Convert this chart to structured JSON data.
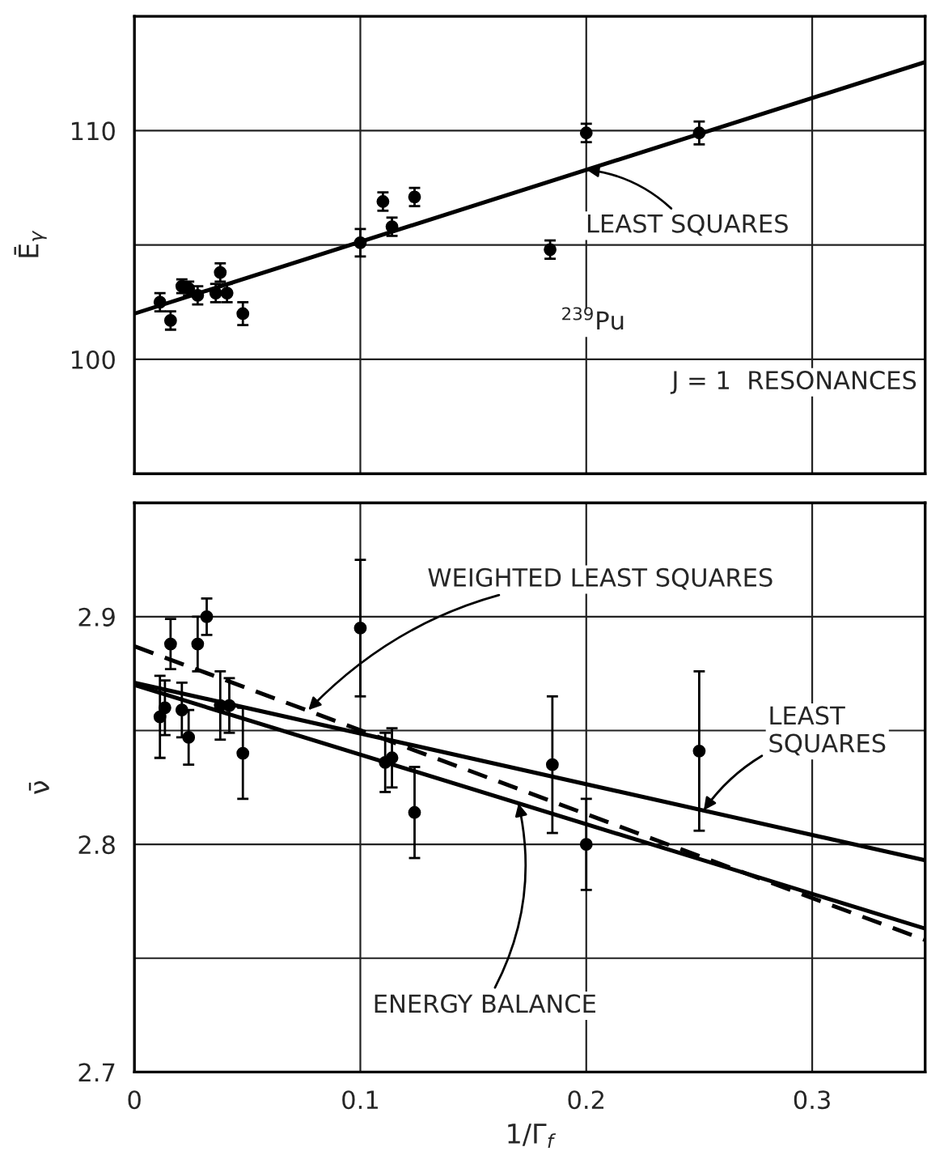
{
  "chart_data": [
    {
      "type": "scatter",
      "ylabel": "Ē$_{γ}$",
      "xlim": [
        0,
        0.35
      ],
      "xticks": [
        0,
        0.1,
        0.2,
        0.3
      ],
      "ylim": [
        95,
        115
      ],
      "yticks": [
        {
          "value": 95,
          "label": null
        },
        100,
        {
          "value": 105,
          "label": null
        },
        110,
        {
          "value": 115,
          "label": null
        }
      ],
      "tick_labels": "y",
      "grid": true,
      "legend": false,
      "marker": "circle",
      "series": [
        {
          "color": "#000000",
          "x": [
            0.0113,
            0.016,
            0.021,
            0.024,
            0.028,
            0.036,
            0.038,
            0.041,
            0.048,
            0.1,
            0.11,
            0.114,
            0.124,
            0.184,
            0.2,
            0.25
          ],
          "values": [
            102.5,
            101.7,
            103.2,
            103.1,
            102.8,
            102.9,
            103.8,
            102.9,
            102.0,
            105.1,
            106.9,
            105.8,
            107.1,
            104.8,
            109.9,
            109.9
          ],
          "errors": [
            0.4,
            0.4,
            0.3,
            0.3,
            0.4,
            0.4,
            0.4,
            0.4,
            0.5,
            0.6,
            0.4,
            0.4,
            0.4,
            0.4,
            0.4,
            0.5
          ]
        },
        {
          "type": "line",
          "marker": "none",
          "color": "#000000",
          "line_style": "solid",
          "x": [
            0,
            0.35
          ],
          "values": [
            102.0,
            113.0
          ]
        }
      ],
      "annotations": [
        {
          "text": "LEAST SQUARES",
          "x": 0.2,
          "y": 108.3
        },
        "$^{239}$Pu",
        "J = 1  RESONANCES"
      ]
    },
    {
      "type": "scatter",
      "ylabel": "ν̄",
      "xlabel": "1/Γ$_{f}$",
      "xlim": [
        0,
        0.35
      ],
      "xticks": [
        0,
        0.1,
        0.2,
        0.3
      ],
      "ylim": [
        2.7,
        2.95
      ],
      "yticks": [
        2.7,
        {
          "value": 2.75,
          "label": null
        },
        2.8,
        {
          "value": 2.85,
          "label": null
        },
        2.9,
        {
          "value": 2.95,
          "label": null
        }
      ],
      "grid": true,
      "legend": false,
      "marker": "circle",
      "series": [
        {
          "color": "#000000",
          "x": [
            0.0113,
            0.0135,
            0.016,
            0.021,
            0.024,
            0.028,
            0.032,
            0.038,
            0.042,
            0.048,
            0.1,
            0.111,
            0.114,
            0.124,
            0.185,
            0.2,
            0.25
          ],
          "values": [
            2.856,
            2.86,
            2.888,
            2.859,
            2.847,
            2.888,
            2.9,
            2.861,
            2.861,
            2.84,
            2.895,
            2.836,
            2.838,
            2.814,
            2.835,
            2.8,
            2.841
          ],
          "errors": [
            0.018,
            0.012,
            0.011,
            0.012,
            0.012,
            0.012,
            0.008,
            0.015,
            0.012,
            0.02,
            0.03,
            0.013,
            0.013,
            0.02,
            0.03,
            0.02,
            0.035
          ]
        },
        {
          "type": "line",
          "marker": "none",
          "color": "#000000",
          "line_style": "solid",
          "x": [
            0,
            0.35
          ],
          "values": [
            2.871,
            2.793
          ]
        },
        {
          "type": "line",
          "marker": "none",
          "color": "#000000",
          "line_style": "solid",
          "x": [
            0,
            0.35
          ],
          "values": [
            2.87,
            2.763
          ]
        },
        {
          "type": "line",
          "marker": "none",
          "color": "#000000",
          "line_style": "dashed",
          "x": [
            0,
            0.35
          ],
          "values": [
            2.887,
            2.758
          ]
        }
      ],
      "annotations": [
        {
          "text": "WEIGHTED LEAST SQUARES",
          "x": 0.077,
          "y": 2.859
        },
        {
          "text": "LEAST\nSQUARES",
          "x": 0.252,
          "y": 2.815
        },
        {
          "text": "ENERGY BALANCE",
          "x": 0.17,
          "y": 2.818
        }
      ]
    }
  ]
}
